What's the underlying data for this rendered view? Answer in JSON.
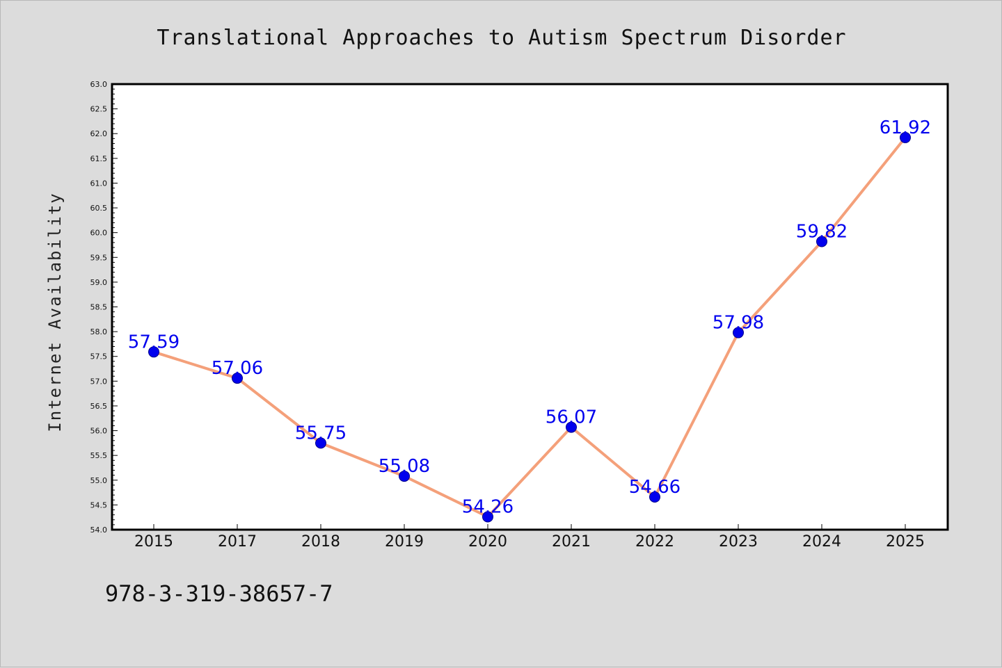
{
  "chart_data": {
    "type": "line",
    "title": "Translational Approaches to Autism Spectrum Disorder",
    "ylabel": "Internet Availability",
    "xlabel": "",
    "categories": [
      "2015",
      "2017",
      "2018",
      "2019",
      "2020",
      "2021",
      "2022",
      "2023",
      "2024",
      "2025"
    ],
    "values": [
      57.59,
      57.06,
      55.75,
      55.08,
      54.26,
      56.07,
      54.66,
      57.98,
      59.82,
      61.92
    ],
    "data_labels": [
      "57.59",
      "57.06",
      "55.75",
      "55.08",
      "54.26",
      "56.07",
      "54.66",
      "57.98",
      "59.82",
      "61.92"
    ],
    "ylim": [
      54.0,
      63.0
    ],
    "yticks": [
      "54.0",
      "54.5",
      "55.0",
      "55.5",
      "56.0",
      "56.5",
      "57.0",
      "57.5",
      "58.0",
      "58.5",
      "59.0",
      "59.5",
      "60.0",
      "60.5",
      "61.0",
      "61.5",
      "62.0",
      "62.5",
      "63.0"
    ],
    "grid": false,
    "legend": "none",
    "colors": {
      "line": "#f4a07a",
      "marker": "#0000ee",
      "marker_edge": "#00008b",
      "labels": "#0000ee",
      "background": "#dcdcdc",
      "plot_area": "#ffffff"
    }
  },
  "footer": {
    "isbn": "978-3-319-38657-7"
  }
}
